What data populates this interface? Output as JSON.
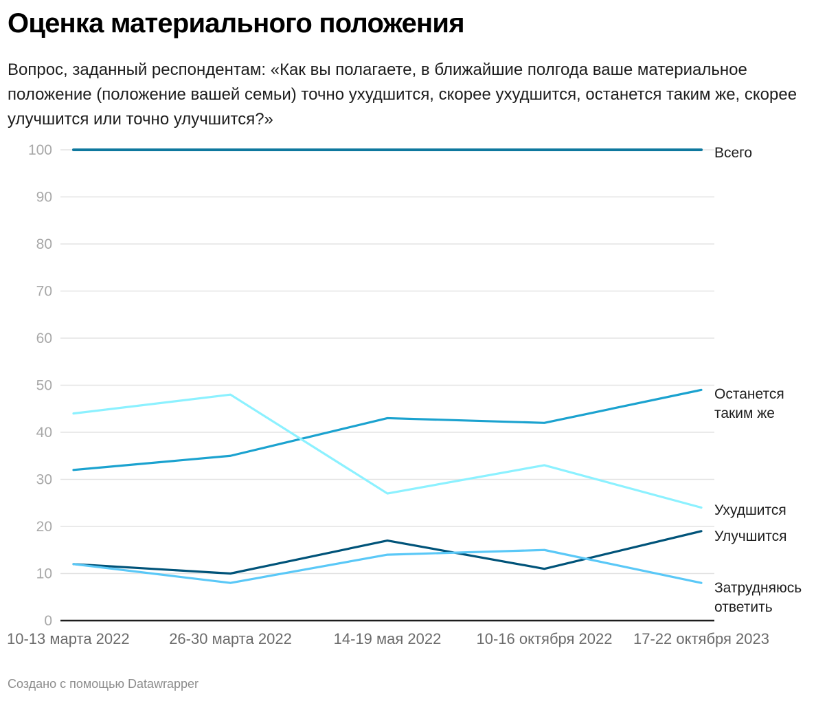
{
  "header": {
    "title": "Оценка материального положения",
    "subtitle": "Вопрос, заданный респондентам: «Как вы полагаете, в ближайшие полгода ваше материальное положение (положение вашей семьи) точно ухудшится, скорее ухудшится, останется таким же, скорее улучшится или точно улучшится?»"
  },
  "footer": {
    "credit": "Создано с помощью Datawrapper"
  },
  "chart_data": {
    "type": "line",
    "title": "Оценка материального положения",
    "xlabel": "",
    "ylabel": "",
    "x": [
      "10-13 марта 2022",
      "26-30 марта 2022",
      "14-19 мая 2022",
      "10-16 октября 2022",
      "17-22 октября 2023"
    ],
    "ylim": [
      0,
      100
    ],
    "yticks": [
      0,
      10,
      20,
      30,
      40,
      50,
      60,
      70,
      80,
      90,
      100
    ],
    "grid": true,
    "legend": "direct labels at right end of lines",
    "series": [
      {
        "name": "Всего",
        "label_lines": [
          "Всего"
        ],
        "color": "#0e789e",
        "values": [
          100,
          100,
          100,
          100,
          100
        ]
      },
      {
        "name": "Останется таким же",
        "label_lines": [
          "Останется",
          "таким же"
        ],
        "color": "#1ba2cf",
        "values": [
          32,
          35,
          43,
          42,
          49
        ]
      },
      {
        "name": "Ухудшится",
        "label_lines": [
          "Ухудшится"
        ],
        "color": "#8cf1ff",
        "values": [
          44,
          48,
          27,
          33,
          24
        ]
      },
      {
        "name": "Улучшится",
        "label_lines": [
          "Улучшится"
        ],
        "color": "#005379",
        "values": [
          12,
          10,
          17,
          11,
          19
        ]
      },
      {
        "name": "Затрудняюсь ответить",
        "label_lines": [
          "Затрудняюсь",
          "ответить"
        ],
        "color": "#5ac8f7",
        "values": [
          12,
          8,
          14,
          15,
          8
        ]
      }
    ]
  }
}
